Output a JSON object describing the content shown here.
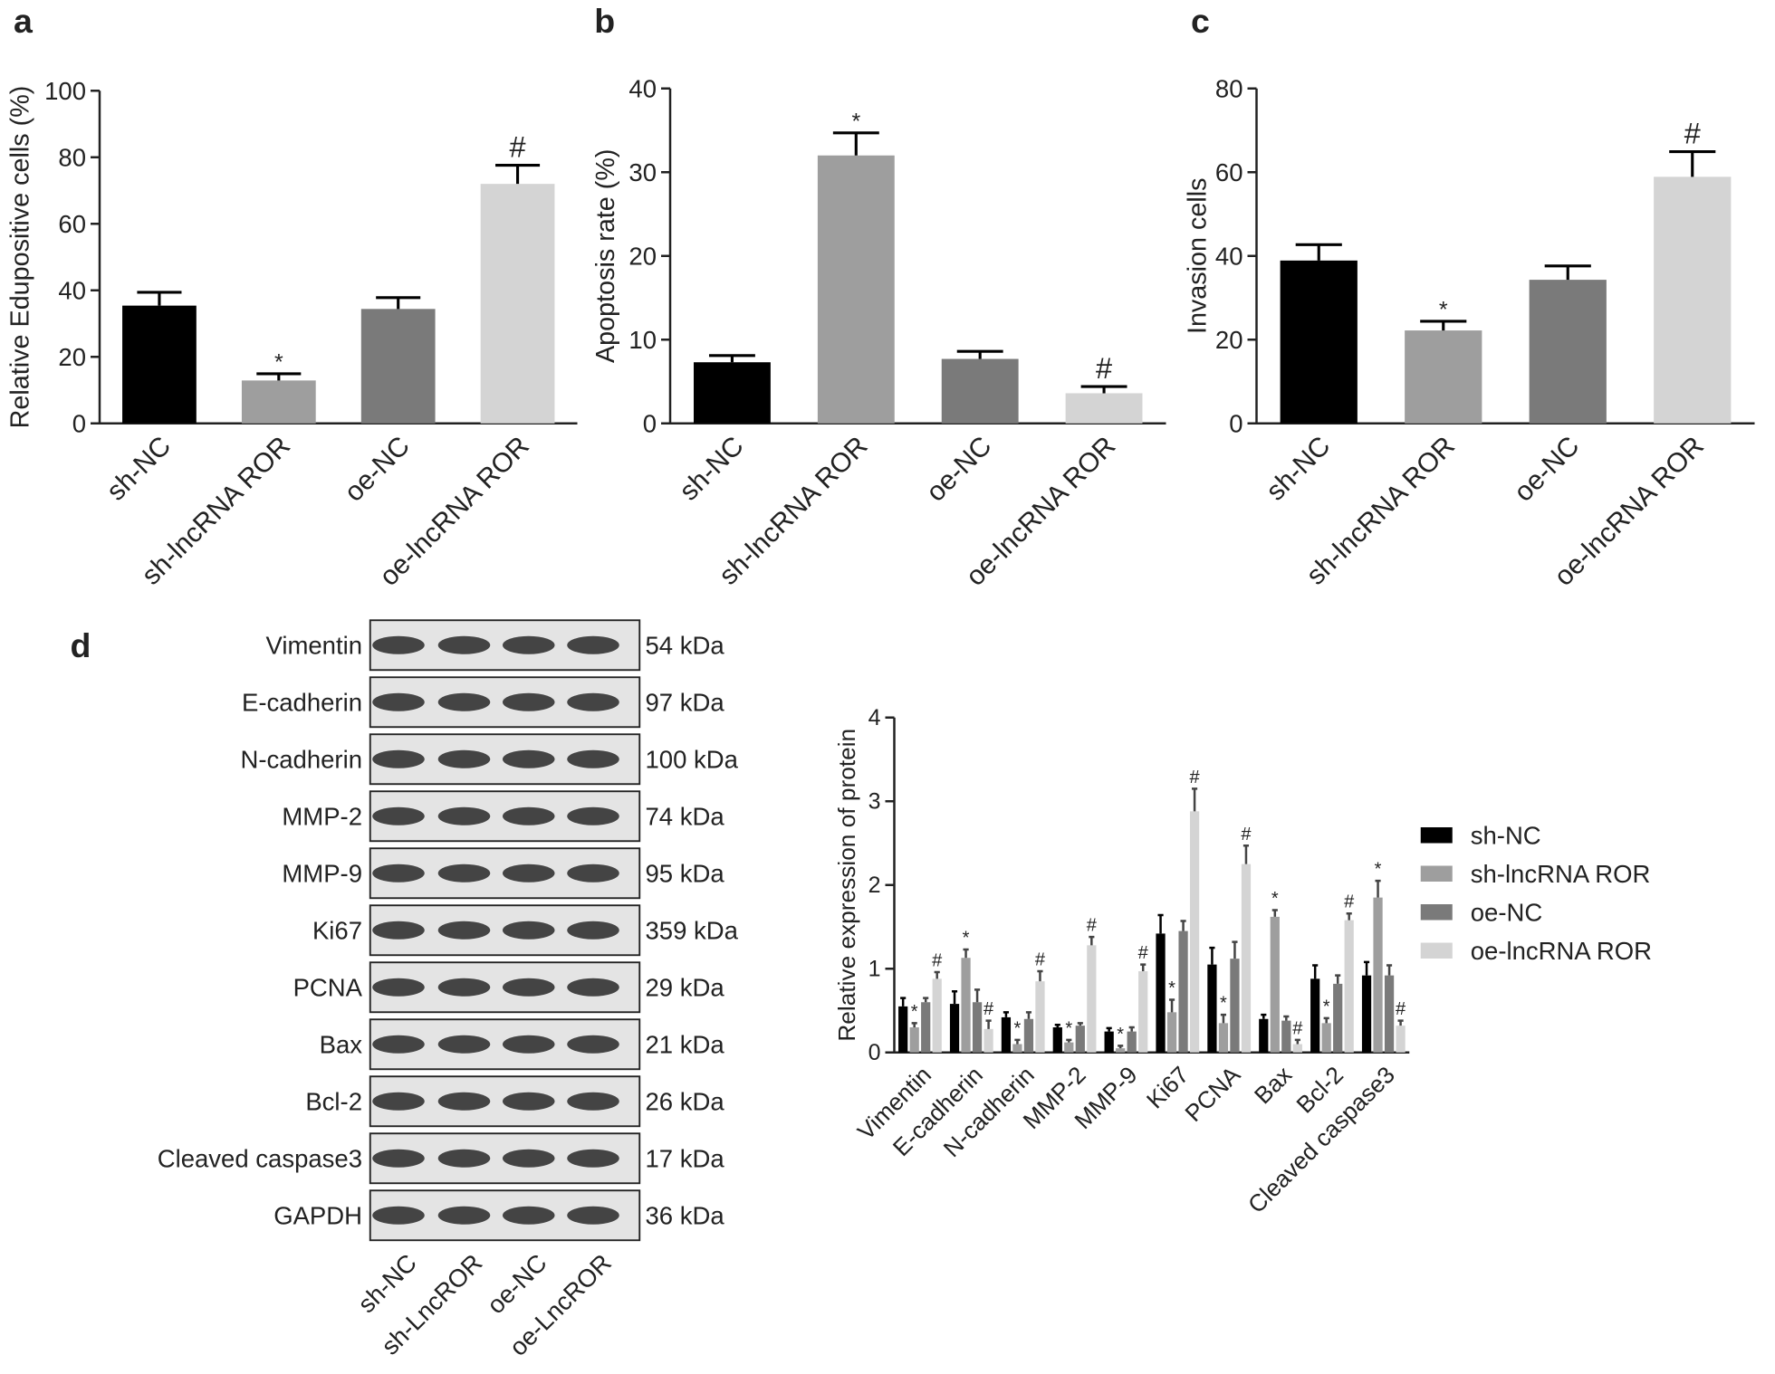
{
  "chart_data": [
    {
      "type": "bar",
      "panel": "a",
      "ylabel": "Relative Edupositive cells (%)",
      "categories": [
        "sh-NC",
        "sh-lncRNA ROR",
        "oe-NC",
        "oe-lncRNA ROR"
      ],
      "values": [
        35.4,
        12.9,
        34.4,
        72
      ],
      "errors": [
        4,
        2,
        3.4,
        5.6
      ],
      "labels": [
        null,
        "*",
        null,
        "#"
      ],
      "colors": [
        "#000000",
        "#9e9e9e",
        "#7a7a7a",
        "#d4d4d4"
      ],
      "ylim": [
        0,
        100
      ],
      "yticks": [
        0,
        20,
        40,
        60,
        80,
        100
      ]
    },
    {
      "type": "bar",
      "panel": "b",
      "ylabel": "Apoptosis rate (%)",
      "categories": [
        "sh-NC",
        "sh-lncRNA ROR",
        "oe-NC",
        "oe-lncRNA ROR"
      ],
      "values": [
        7.3,
        32,
        7.7,
        3.6
      ],
      "errors": [
        0.8,
        2.7,
        0.9,
        0.8
      ],
      "labels": [
        null,
        "*",
        null,
        "#"
      ],
      "colors": [
        "#000000",
        "#9e9e9e",
        "#7a7a7a",
        "#d4d4d4"
      ],
      "ylim": [
        0,
        40
      ],
      "yticks": [
        0,
        10,
        20,
        30,
        40
      ]
    },
    {
      "type": "bar",
      "panel": "c",
      "ylabel": "Invasion cells",
      "categories": [
        "sh-NC",
        "sh-lncRNA ROR",
        "oe-NC",
        "oe-lncRNA ROR"
      ],
      "values": [
        38.9,
        22.2,
        34.3,
        58.9
      ],
      "errors": [
        3.8,
        2.2,
        3.3,
        6
      ],
      "labels": [
        null,
        "*",
        null,
        "#"
      ],
      "colors": [
        "#000000",
        "#9e9e9e",
        "#7a7a7a",
        "#d4d4d4"
      ],
      "ylim": [
        0,
        80
      ],
      "yticks": [
        0,
        20,
        40,
        60,
        80
      ]
    },
    {
      "type": "bar",
      "ylabel": "Relative expression of protein",
      "categories": [
        "Vimentin",
        "E-cadherin",
        "N-cadherin",
        "MMP-2",
        "MMP-9",
        "Ki67",
        "PCNA",
        "Bax",
        "Bcl-2",
        "Cleaved caspase3"
      ],
      "series": [
        {
          "name": "sh-NC",
          "color": "#000000",
          "values": [
            0.55,
            0.58,
            0.42,
            0.3,
            0.25,
            1.42,
            1.05,
            0.4,
            0.88,
            0.92
          ],
          "errors": [
            0.1,
            0.15,
            0.06,
            0.03,
            0.04,
            0.22,
            0.2,
            0.05,
            0.16,
            0.16
          ]
        },
        {
          "name": "sh-lncRNA ROR",
          "color": "#9e9e9e",
          "values": [
            0.3,
            1.13,
            0.1,
            0.12,
            0.05,
            0.48,
            0.35,
            1.62,
            0.35,
            1.85
          ],
          "errors": [
            0.05,
            0.1,
            0.05,
            0.03,
            0.03,
            0.15,
            0.1,
            0.08,
            0.06,
            0.2
          ],
          "labels": [
            "*",
            "*",
            "*",
            "*",
            "*",
            "*",
            "*",
            "*",
            "*",
            "*"
          ]
        },
        {
          "name": "oe-NC",
          "color": "#7a7a7a",
          "values": [
            0.6,
            0.6,
            0.4,
            0.32,
            0.25,
            1.45,
            1.12,
            0.38,
            0.82,
            0.92
          ],
          "errors": [
            0.05,
            0.15,
            0.08,
            0.03,
            0.05,
            0.12,
            0.2,
            0.05,
            0.1,
            0.12
          ]
        },
        {
          "name": "oe-lncRNA ROR",
          "color": "#d4d4d4",
          "values": [
            0.88,
            0.28,
            0.85,
            1.28,
            0.97,
            2.88,
            2.25,
            0.1,
            1.58,
            0.32
          ],
          "errors": [
            0.08,
            0.1,
            0.12,
            0.1,
            0.08,
            0.27,
            0.22,
            0.05,
            0.08,
            0.06
          ],
          "labels": [
            "#",
            "#",
            "#",
            "#",
            "#",
            "#",
            "#",
            "#",
            "#",
            "#"
          ]
        }
      ],
      "ylim": [
        0,
        4
      ],
      "yticks": [
        0,
        1,
        2,
        3,
        4
      ],
      "legend": "right"
    }
  ],
  "blot": {
    "panel": "d",
    "rows": [
      {
        "protein": "Vimentin",
        "size": "54 kDa"
      },
      {
        "protein": "E-cadherin",
        "size": "97 kDa"
      },
      {
        "protein": "N-cadherin",
        "size": "100 kDa"
      },
      {
        "protein": "MMP-2",
        "size": "74 kDa"
      },
      {
        "protein": "MMP-9",
        "size": "95 kDa"
      },
      {
        "protein": "Ki67",
        "size": "359 kDa"
      },
      {
        "protein": "PCNA",
        "size": "29 kDa"
      },
      {
        "protein": "Bax",
        "size": "21 kDa"
      },
      {
        "protein": "Bcl-2",
        "size": "26 kDa"
      },
      {
        "protein": "Cleaved caspase3",
        "size": "17  kDa"
      },
      {
        "protein": "GAPDH",
        "size": "36 kDa"
      }
    ],
    "lanes": [
      "sh-NC",
      "sh-LncROR",
      "oe-NC",
      "oe-LncROR"
    ]
  }
}
